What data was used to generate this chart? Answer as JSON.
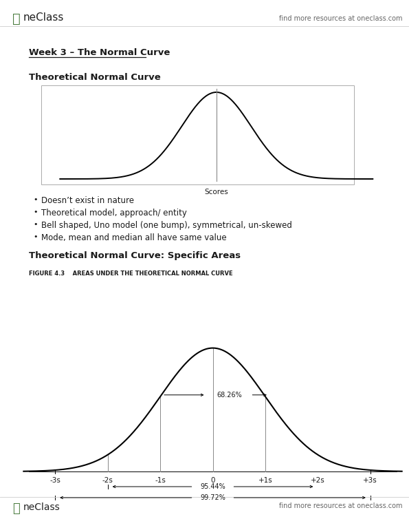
{
  "bg_color": "#ffffff",
  "text_color": "#1a1a1a",
  "gray_text": "#666666",
  "header_text": "find more resources at oneclass.com",
  "footer_text": "find more resources at oneclass.com",
  "week_title": "Week 3 – The Normal Curve",
  "section1_title": "Theoretical Normal Curve",
  "section2_title": "Theoretical Normal Curve: Specific Areas",
  "figure_caption": "FIGURE 4.3    AREAS UNDER THE THEORETICAL NORMAL CURVE",
  "bullets": [
    "Doesn’t exist in nature",
    "Theoretical model, approach/ entity",
    "Bell shaped, Uno model (one bump), symmetrical, un-skewed",
    "Mode, mean and median all have same value"
  ],
  "scores_label": "Scores",
  "xlabel_labels": [
    "-3s",
    "-2s",
    "-1s",
    "0",
    "+1s",
    "+2s",
    "+3s"
  ],
  "pct_68": "68.26%",
  "pct_95": "95.44%",
  "pct_99": "99.72%",
  "logo_green": "#4a7c3f",
  "logo_gray": "#555555",
  "header_line_color": "#cccccc",
  "box_edge_color": "#aaaaaa",
  "curve_color": "#000000",
  "vline_color": "#888888"
}
